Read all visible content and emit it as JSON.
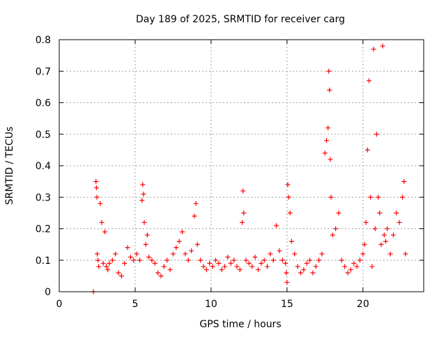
{
  "chart_data": {
    "type": "scatter",
    "title": "Day 189 of 2025, SRMTID for receiver carg",
    "xlabel": "GPS time / hours",
    "ylabel": "SRMTID / TECUs",
    "xlim": [
      0,
      24
    ],
    "ylim": [
      0,
      0.8
    ],
    "xticks": [
      0,
      5,
      10,
      15,
      20
    ],
    "xtick_labels": [
      "0",
      "5",
      "10",
      "15",
      "20"
    ],
    "yticks": [
      0,
      0.1,
      0.2,
      0.3,
      0.4,
      0.5,
      0.6,
      0.7,
      0.8
    ],
    "ytick_labels": [
      "0",
      "0.1",
      "0.2",
      "0.3",
      "0.4",
      "0.5",
      "0.6",
      "0.7",
      "0.8"
    ],
    "grid": true,
    "marker": "+",
    "series": [
      {
        "name": "SRMTID",
        "color": "#ff0000",
        "x": [
          2.25,
          2.42,
          2.45,
          2.48,
          2.5,
          2.55,
          2.6,
          2.7,
          2.8,
          2.9,
          3.0,
          3.1,
          3.2,
          3.3,
          3.5,
          3.7,
          3.9,
          4.1,
          4.3,
          4.5,
          4.7,
          4.9,
          5.1,
          5.3,
          5.45,
          5.5,
          5.55,
          5.6,
          5.7,
          5.8,
          5.9,
          6.1,
          6.3,
          6.5,
          6.7,
          6.9,
          7.1,
          7.3,
          7.5,
          7.7,
          7.9,
          8.1,
          8.3,
          8.5,
          8.7,
          8.9,
          9.0,
          9.1,
          9.3,
          9.5,
          9.7,
          9.9,
          10.1,
          10.3,
          10.5,
          10.7,
          10.9,
          11.1,
          11.3,
          11.5,
          11.7,
          11.9,
          12.05,
          12.1,
          12.15,
          12.3,
          12.5,
          12.7,
          12.9,
          13.1,
          13.3,
          13.5,
          13.7,
          13.9,
          14.1,
          14.3,
          14.5,
          14.7,
          14.9,
          14.95,
          15.0,
          15.05,
          15.1,
          15.2,
          15.3,
          15.5,
          15.7,
          15.9,
          16.1,
          16.3,
          16.5,
          16.7,
          16.9,
          17.1,
          17.3,
          17.5,
          17.6,
          17.7,
          17.75,
          17.8,
          17.85,
          17.9,
          18.0,
          18.2,
          18.4,
          18.6,
          18.8,
          19.0,
          19.2,
          19.4,
          19.6,
          19.8,
          20.0,
          20.1,
          20.2,
          20.3,
          20.4,
          20.5,
          20.6,
          20.7,
          20.8,
          20.9,
          21.0,
          21.1,
          21.2,
          21.3,
          21.4,
          21.5,
          21.6,
          21.8,
          22.0,
          22.2,
          22.4,
          22.6,
          22.7,
          22.8
        ],
        "y": [
          0.0,
          0.35,
          0.33,
          0.3,
          0.12,
          0.1,
          0.08,
          0.28,
          0.22,
          0.09,
          0.19,
          0.08,
          0.07,
          0.09,
          0.1,
          0.12,
          0.06,
          0.05,
          0.09,
          0.14,
          0.11,
          0.1,
          0.12,
          0.1,
          0.29,
          0.34,
          0.31,
          0.22,
          0.15,
          0.18,
          0.11,
          0.1,
          0.09,
          0.06,
          0.05,
          0.08,
          0.1,
          0.07,
          0.12,
          0.14,
          0.16,
          0.19,
          0.12,
          0.1,
          0.13,
          0.24,
          0.28,
          0.15,
          0.1,
          0.08,
          0.07,
          0.09,
          0.08,
          0.1,
          0.09,
          0.07,
          0.08,
          0.11,
          0.09,
          0.1,
          0.08,
          0.07,
          0.22,
          0.32,
          0.25,
          0.1,
          0.09,
          0.08,
          0.11,
          0.07,
          0.09,
          0.1,
          0.08,
          0.12,
          0.1,
          0.21,
          0.13,
          0.1,
          0.09,
          0.06,
          0.03,
          0.34,
          0.3,
          0.25,
          0.16,
          0.12,
          0.08,
          0.06,
          0.07,
          0.09,
          0.1,
          0.06,
          0.08,
          0.1,
          0.12,
          0.44,
          0.48,
          0.52,
          0.7,
          0.64,
          0.42,
          0.3,
          0.18,
          0.2,
          0.25,
          0.1,
          0.08,
          0.06,
          0.07,
          0.09,
          0.08,
          0.1,
          0.12,
          0.15,
          0.22,
          0.45,
          0.67,
          0.3,
          0.08,
          0.77,
          0.2,
          0.5,
          0.3,
          0.25,
          0.15,
          0.78,
          0.18,
          0.16,
          0.2,
          0.12,
          0.18,
          0.25,
          0.22,
          0.3,
          0.35,
          0.12
        ]
      }
    ]
  }
}
